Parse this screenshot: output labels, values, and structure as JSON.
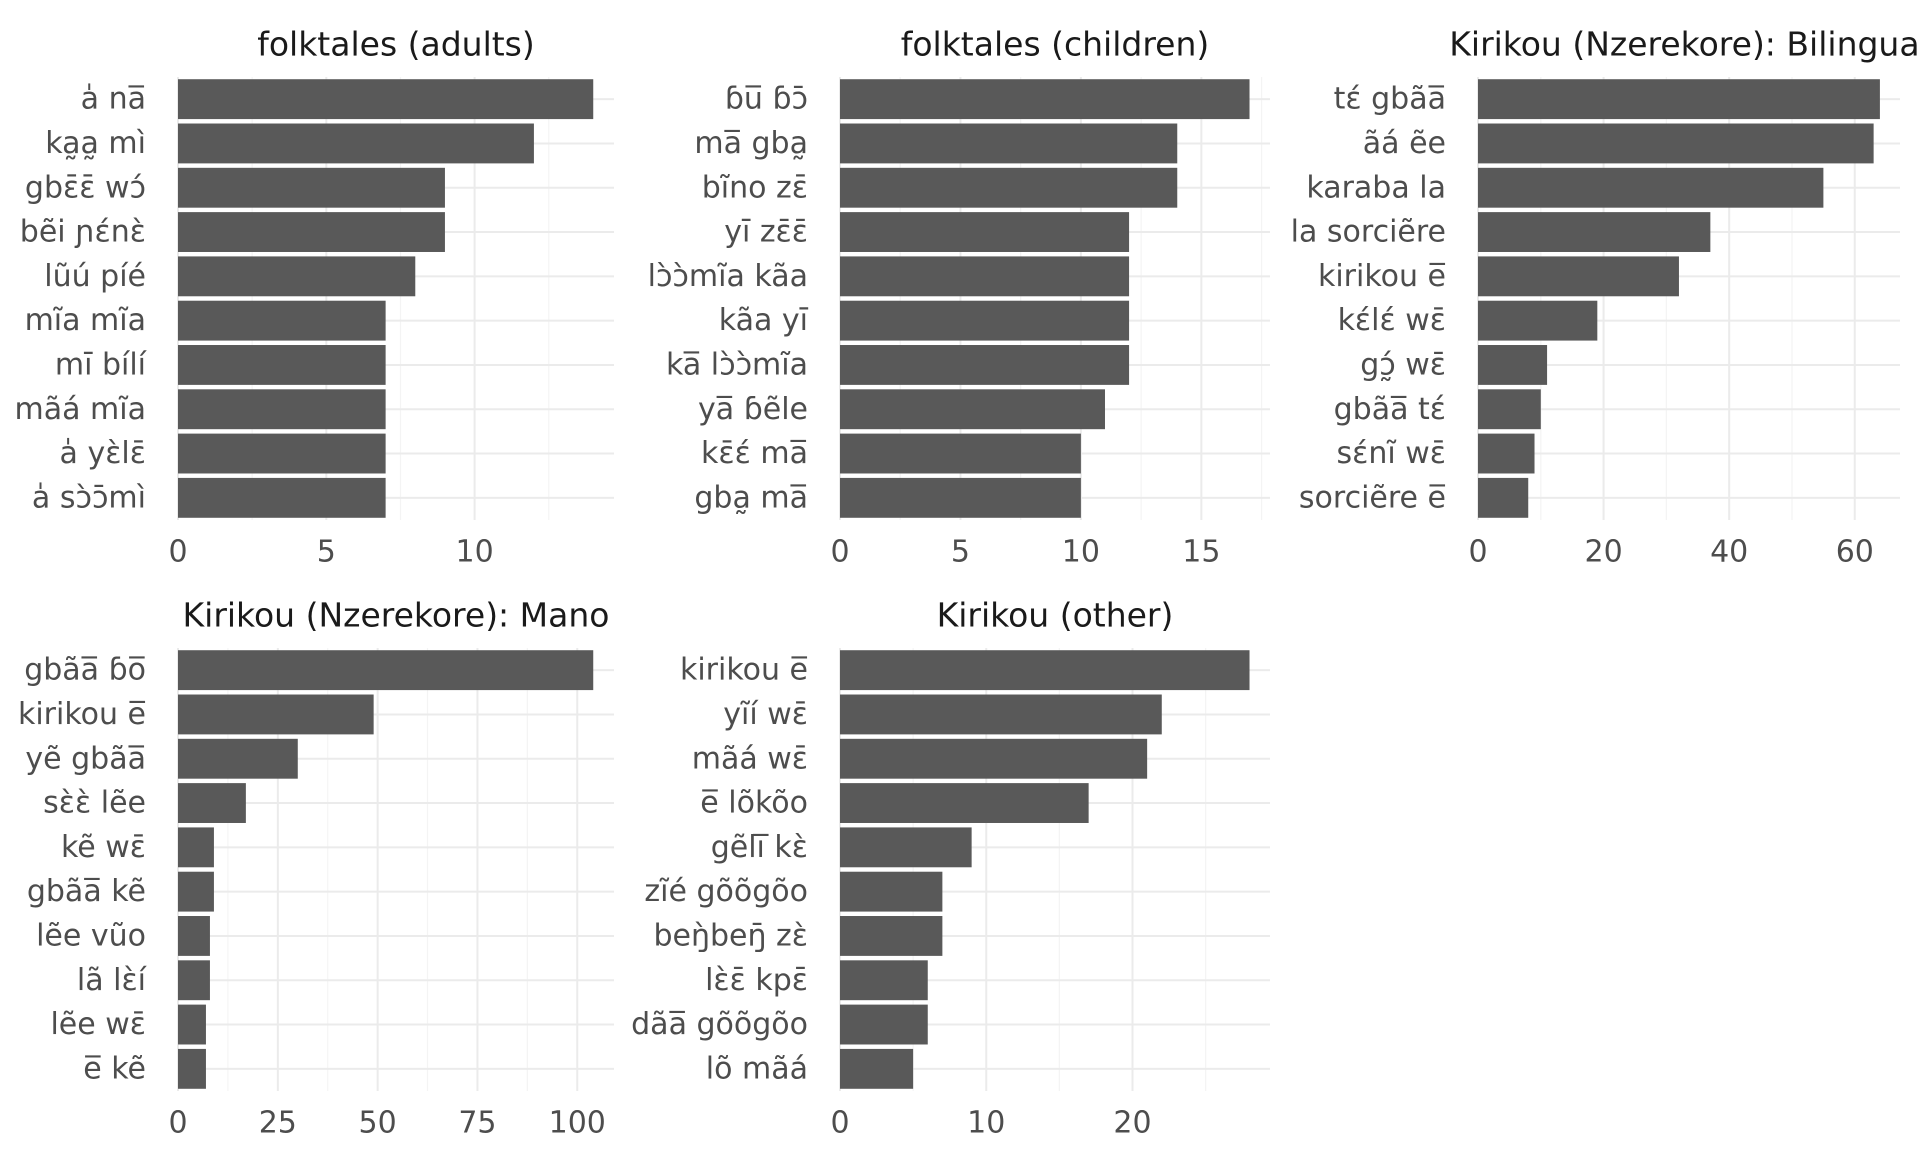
{
  "chart_data": [
    {
      "type": "bar",
      "orientation": "horizontal",
      "title": "folktales (adults)",
      "categories": [
        "a̍ na̅",
        "ka̰a̰ mì",
        "gbɛ̄ɛ̄ wɔ́",
        "be͂i ɲɛ́nɛ̀",
        "lu͂ú píé",
        "mi͂a mi͂a",
        "mī bílí",
        "ma͂á mi͂a",
        "a̍ yɛ̀lɛ̄",
        "a̍ sɔ̀ɔ̄mì"
      ],
      "values": [
        14,
        12,
        9,
        9,
        8,
        7,
        7,
        7,
        7,
        7
      ],
      "xlim": [
        0,
        14.7
      ],
      "xticks": [
        0,
        5,
        10
      ],
      "xlabel": "",
      "ylabel": "",
      "grid": true
    },
    {
      "type": "bar",
      "orientation": "horizontal",
      "title": "folktales (children)",
      "categories": [
        "ɓu̅ ɓɔ̄",
        "ma̅ gba̰",
        "bi͂no zɛ̄",
        "yī zɛ̄ɛ̄",
        "lɔ̀ɔ̀mi͂a ka͂a",
        "ka͂a yī",
        "ka̅ lɔ̀ɔ̀mi͂a",
        "ya̅ ɓe͂le",
        "kɛ̄ɛ́ ma̅",
        "gba̰ ma̅"
      ],
      "values": [
        17,
        14,
        14,
        12,
        12,
        12,
        12,
        11,
        10,
        10
      ],
      "xlim": [
        0,
        17.85
      ],
      "xticks": [
        0,
        5,
        10,
        15
      ],
      "xlabel": "",
      "ylabel": "",
      "grid": true
    },
    {
      "type": "bar",
      "orientation": "horizontal",
      "title": "Kirikou (Nzerekore): Bilingual",
      "categories": [
        "tɛ́ gba͂a̅",
        "a͂á e͂e",
        "karaba la",
        "la sorcie͂re",
        "kirikou e̅",
        "kɛ́lɛ́ wɛ̄",
        "gɔ̰́ wɛ̄",
        "gba͂a̅ tɛ́",
        "sɛ́ni͂ wɛ̄",
        "sorcie͂re e̅"
      ],
      "values": [
        64,
        63,
        55,
        37,
        32,
        19,
        11,
        10,
        9,
        8
      ],
      "xlim": [
        0,
        67.2
      ],
      "xticks": [
        0,
        20,
        40,
        60
      ],
      "xlabel": "",
      "ylabel": "",
      "grid": true
    },
    {
      "type": "bar",
      "orientation": "horizontal",
      "title": "Kirikou (Nzerekore): Mano",
      "categories": [
        "gba͂a̅ ɓo̅",
        "kirikou e̅",
        "ye͂ gba͂a̅",
        "sɛ̀ɛ̀ le͂e",
        "ke͂ wɛ̄",
        "gba͂a̅ ke͂",
        "le͂e vu͂o",
        "la͂ lɛ̀í",
        "le͂e wɛ̄",
        "e̅ ke͂"
      ],
      "values": [
        104,
        49,
        30,
        17,
        9,
        9,
        8,
        8,
        7,
        7
      ],
      "xlim": [
        0,
        109.2
      ],
      "xticks": [
        0,
        25,
        50,
        75,
        100
      ],
      "xlabel": "",
      "ylabel": "",
      "grid": true
    },
    {
      "type": "bar",
      "orientation": "horizontal",
      "title": "Kirikou (other)",
      "categories": [
        "kirikou e̅",
        "yi͂í wɛ̄",
        "ma͂á wɛ̄",
        "e̅ lo͂ko͂o",
        "ge͂li̅ kɛ̀",
        "zi͂é go͂o͂go͂o",
        "beŋ̀beŋ̄ zɛ̀",
        "lɛ̀ɛ̄ kpɛ̄",
        "da͂a̅ go͂o͂go͂o",
        "lo͂ ma͂á"
      ],
      "values": [
        28,
        22,
        21,
        17,
        9,
        7,
        7,
        6,
        6,
        5
      ],
      "xlim": [
        0,
        29.4
      ],
      "xticks": [
        0,
        10,
        20
      ],
      "xlabel": "",
      "ylabel": "",
      "grid": true
    }
  ]
}
